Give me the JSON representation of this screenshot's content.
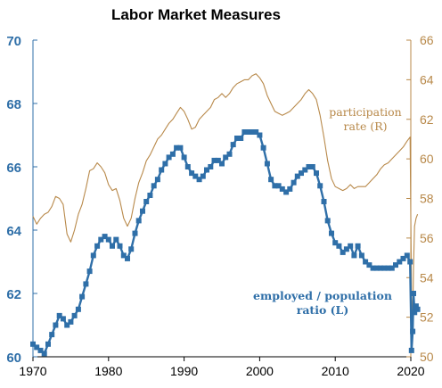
{
  "chart_data": {
    "type": "line",
    "title": "Labor Market Measures",
    "x_range": [
      1970,
      2020
    ],
    "x_ticks": [
      "1970",
      "1980",
      "1990",
      "2000",
      "2010",
      "2020"
    ],
    "left_axis": {
      "range": [
        60,
        70
      ],
      "ticks": [
        "60",
        "62",
        "64",
        "66",
        "68",
        "70"
      ],
      "color": "#2f6fa8"
    },
    "right_axis": {
      "range": [
        50,
        66
      ],
      "ticks": [
        "50",
        "52",
        "54",
        "56",
        "58",
        "60",
        "62",
        "64",
        "66"
      ],
      "color": "#b8894a"
    },
    "grid": false,
    "series": [
      {
        "name": "employed / population ratio (L)",
        "label_lines": [
          "employed / population",
          "ratio (L)"
        ],
        "axis": "left",
        "color": "#2f6fa8",
        "marker": "square",
        "x": [
          1970.0,
          1970.5,
          1971.0,
          1971.5,
          1972.0,
          1972.5,
          1973.0,
          1973.5,
          1974.0,
          1974.5,
          1975.0,
          1975.5,
          1976.0,
          1976.5,
          1977.0,
          1977.5,
          1978.0,
          1978.5,
          1979.0,
          1979.5,
          1980.0,
          1980.5,
          1981.0,
          1981.5,
          1982.0,
          1982.5,
          1983.0,
          1983.5,
          1984.0,
          1984.5,
          1985.0,
          1985.5,
          1986.0,
          1986.5,
          1987.0,
          1987.5,
          1988.0,
          1988.5,
          1989.0,
          1989.5,
          1990.0,
          1990.5,
          1991.0,
          1991.5,
          1992.0,
          1992.5,
          1993.0,
          1993.5,
          1994.0,
          1994.5,
          1995.0,
          1995.5,
          1996.0,
          1996.5,
          1997.0,
          1997.5,
          1998.0,
          1998.5,
          1999.0,
          1999.5,
          2000.0,
          2000.5,
          2001.0,
          2001.5,
          2002.0,
          2002.5,
          2003.0,
          2003.5,
          2004.0,
          2004.5,
          2005.0,
          2005.5,
          2006.0,
          2006.5,
          2007.0,
          2007.5,
          2008.0,
          2008.5,
          2009.0,
          2009.5,
          2010.0,
          2010.5,
          2011.0,
          2011.5,
          2012.0,
          2012.5,
          2013.0,
          2013.5,
          2014.0,
          2014.5,
          2015.0,
          2015.5,
          2016.0,
          2016.5,
          2017.0,
          2017.5,
          2018.0,
          2018.5,
          2019.0,
          2019.5,
          2019.9,
          2020.1,
          2020.25,
          2020.35,
          2020.5,
          2020.7,
          2020.9
        ],
        "values": [
          60.4,
          60.3,
          60.2,
          60.1,
          60.4,
          60.7,
          61.0,
          61.3,
          61.2,
          61.0,
          61.1,
          61.3,
          61.5,
          61.9,
          62.3,
          62.7,
          63.2,
          63.5,
          63.7,
          63.8,
          63.7,
          63.5,
          63.7,
          63.5,
          63.2,
          63.1,
          63.4,
          63.9,
          64.3,
          64.6,
          64.9,
          65.1,
          65.4,
          65.6,
          65.9,
          66.1,
          66.3,
          66.4,
          66.6,
          66.6,
          66.3,
          66.0,
          65.8,
          65.7,
          65.6,
          65.7,
          65.9,
          66.0,
          66.2,
          66.2,
          66.1,
          66.3,
          66.4,
          66.7,
          66.9,
          66.9,
          67.1,
          67.1,
          67.1,
          67.1,
          67.0,
          66.6,
          66.1,
          65.6,
          65.4,
          65.4,
          65.3,
          65.2,
          65.3,
          65.5,
          65.7,
          65.8,
          65.9,
          66.0,
          66.0,
          65.8,
          65.4,
          64.9,
          64.3,
          63.9,
          63.6,
          63.5,
          63.3,
          63.4,
          63.5,
          63.2,
          63.5,
          63.2,
          63.0,
          62.9,
          62.8,
          62.8,
          62.8,
          62.8,
          62.8,
          62.8,
          62.9,
          63.0,
          63.1,
          63.2,
          63.0,
          60.2,
          60.8,
          62.0,
          61.4,
          61.6,
          61.5
        ]
      },
      {
        "name": "participation rate (R)",
        "label_lines": [
          "participation",
          "rate (R)"
        ],
        "axis": "right",
        "color": "#b8894a",
        "marker": "none",
        "x": [
          1970.0,
          1970.5,
          1971.0,
          1971.5,
          1972.0,
          1972.5,
          1973.0,
          1973.5,
          1974.0,
          1974.5,
          1975.0,
          1975.5,
          1976.0,
          1976.5,
          1977.0,
          1977.5,
          1978.0,
          1978.5,
          1979.0,
          1979.5,
          1980.0,
          1980.5,
          1981.0,
          1981.5,
          1982.0,
          1982.5,
          1983.0,
          1983.5,
          1984.0,
          1984.5,
          1985.0,
          1985.5,
          1986.0,
          1986.5,
          1987.0,
          1987.5,
          1988.0,
          1988.5,
          1989.0,
          1989.5,
          1990.0,
          1990.5,
          1991.0,
          1991.5,
          1992.0,
          1992.5,
          1993.0,
          1993.5,
          1994.0,
          1994.5,
          1995.0,
          1995.5,
          1996.0,
          1996.5,
          1997.0,
          1997.5,
          1998.0,
          1998.5,
          1999.0,
          1999.5,
          2000.0,
          2000.5,
          2001.0,
          2001.5,
          2002.0,
          2002.5,
          2003.0,
          2003.5,
          2004.0,
          2004.5,
          2005.0,
          2005.5,
          2006.0,
          2006.5,
          2007.0,
          2007.5,
          2008.0,
          2008.5,
          2009.0,
          2009.5,
          2010.0,
          2010.5,
          2011.0,
          2011.5,
          2012.0,
          2012.5,
          2013.0,
          2013.5,
          2014.0,
          2014.5,
          2015.0,
          2015.5,
          2016.0,
          2016.5,
          2017.0,
          2017.5,
          2018.0,
          2018.5,
          2019.0,
          2019.5,
          2019.9,
          2020.1,
          2020.25,
          2020.35,
          2020.5,
          2020.7,
          2020.9
        ],
        "values": [
          57.1,
          56.7,
          57.0,
          57.2,
          57.3,
          57.6,
          58.1,
          58.0,
          57.7,
          56.2,
          55.8,
          56.4,
          57.2,
          57.7,
          58.5,
          59.4,
          59.5,
          59.8,
          59.6,
          59.3,
          58.7,
          58.4,
          58.5,
          57.9,
          57.0,
          56.6,
          57.0,
          58.0,
          58.8,
          59.3,
          59.9,
          60.2,
          60.6,
          61.0,
          61.2,
          61.5,
          61.8,
          62.0,
          62.3,
          62.6,
          62.4,
          62.0,
          61.5,
          61.6,
          62.0,
          62.2,
          62.4,
          62.6,
          63.0,
          63.1,
          63.3,
          63.1,
          63.3,
          63.6,
          63.8,
          63.9,
          64.0,
          64.0,
          64.2,
          64.3,
          64.1,
          63.8,
          63.2,
          62.8,
          62.4,
          62.3,
          62.2,
          62.3,
          62.4,
          62.6,
          62.8,
          63.0,
          63.3,
          63.5,
          63.3,
          63.0,
          62.2,
          61.1,
          59.9,
          59.0,
          58.6,
          58.5,
          58.4,
          58.5,
          58.7,
          58.5,
          58.6,
          58.6,
          58.6,
          58.8,
          59.0,
          59.2,
          59.5,
          59.7,
          59.8,
          60.0,
          60.2,
          60.4,
          60.6,
          60.9,
          61.1,
          53.0,
          51.4,
          54.5,
          56.6,
          57.0,
          57.2
        ]
      }
    ]
  }
}
